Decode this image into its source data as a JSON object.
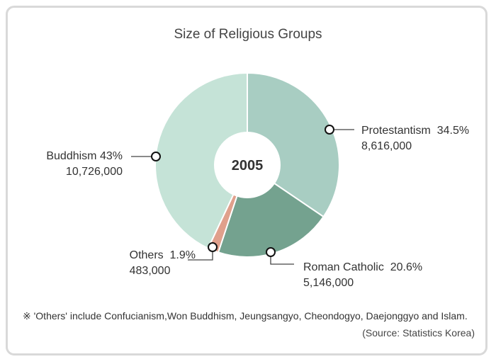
{
  "chart_data": {
    "type": "pie",
    "title": "Size of Religious Groups",
    "center_label": "2005",
    "slices": [
      {
        "name": "Protestantism",
        "percent_label": "34.5%",
        "value": 34.5,
        "count": "8,616,000",
        "color": "#a8cdc2"
      },
      {
        "name": "Roman Catholic",
        "percent_label": "20.6%",
        "value": 20.6,
        "count": "5,146,000",
        "color": "#74a28f"
      },
      {
        "name": "Others",
        "percent_label": "1.9%",
        "value": 1.9,
        "count": "483,000",
        "color": "#e0a08c"
      },
      {
        "name": "Buddhism",
        "percent_label": "43%",
        "value": 43,
        "count": "10,726,000",
        "color": "#c5e3d7"
      }
    ]
  },
  "footnote": "※ 'Others' include Confucianism,Won Buddhism, Jeungsangyo, Cheondogyo, Daejonggyo and Islam.",
  "source": "(Source: Statistics Korea)"
}
